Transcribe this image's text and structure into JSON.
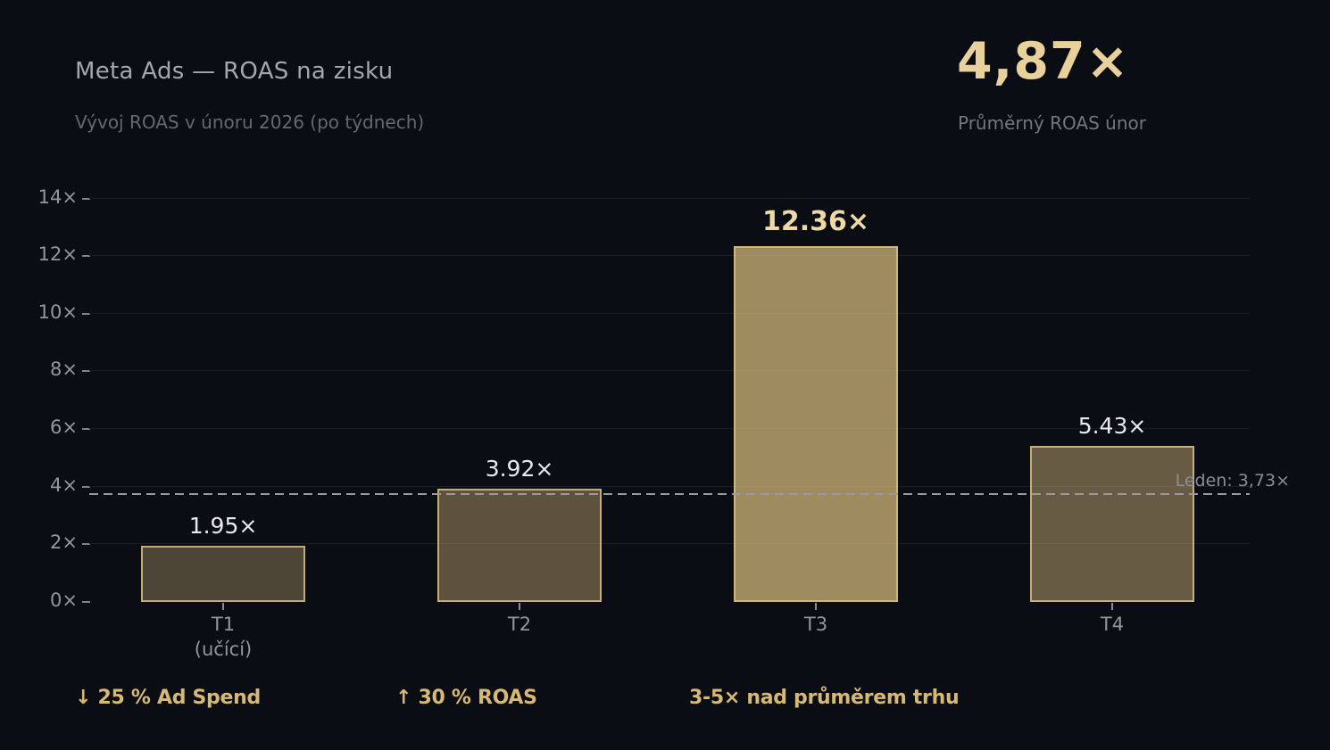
{
  "header": {
    "title": "Meta Ads — ROAS na zisku",
    "subtitle": "Vývoj ROAS v únoru 2026 (po týdnech)"
  },
  "kpi": {
    "value": "4,87×",
    "label": "Průměrný ROAS únor"
  },
  "chart_data": {
    "type": "bar",
    "title": "Meta Ads — ROAS na zisku",
    "subtitle": "Vývoj ROAS v únoru 2026 (po týdnech)",
    "categories": [
      "T1 (učící)",
      "T2",
      "T3",
      "T4"
    ],
    "category_lines": [
      [
        "T1",
        "(učící)"
      ],
      [
        "T2"
      ],
      [
        "T3"
      ],
      [
        "T4"
      ]
    ],
    "values": [
      1.95,
      3.92,
      12.36,
      5.43
    ],
    "value_labels": [
      "1.95×",
      "3.92×",
      "12.36×",
      "5.43×"
    ],
    "highlight_index": 2,
    "xlabel": "",
    "ylabel": "",
    "ylim": [
      0,
      14
    ],
    "yticks": [
      0,
      2,
      4,
      6,
      8,
      10,
      12,
      14
    ],
    "ytick_labels": [
      "0×",
      "2×",
      "4×",
      "6×",
      "8×",
      "10×",
      "12×",
      "14×"
    ],
    "grid": "horizontal",
    "legend": "none",
    "benchmark": {
      "value": 3.73,
      "label": "Leden: 3,73×"
    },
    "bar_rgb": [
      217,
      189,
      126
    ],
    "bar_alphas": [
      0.33,
      0.4,
      0.72,
      0.45
    ],
    "colors": {
      "background": "#0a0d13",
      "accent_gold": "#d9bd7e",
      "kpi_gold": "#e9d19c",
      "highlight_label": "#eed9a6",
      "value_label": "#e9e9ed",
      "axis_text": "#95959d",
      "gridline": "#171d26",
      "benchmark_line": "#9898a1",
      "annotation_gold": "#d8b973"
    }
  },
  "footer": {
    "annotations": [
      "↓ 25 % Ad Spend",
      "↑ 30 % ROAS",
      "3-5× nad průměrem trhu"
    ]
  }
}
